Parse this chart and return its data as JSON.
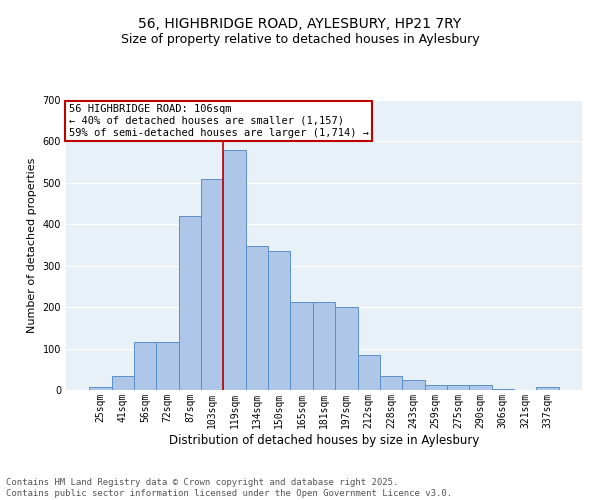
{
  "title": "56, HIGHBRIDGE ROAD, AYLESBURY, HP21 7RY",
  "subtitle": "Size of property relative to detached houses in Aylesbury",
  "xlabel": "Distribution of detached houses by size in Aylesbury",
  "ylabel": "Number of detached properties",
  "categories": [
    "25sqm",
    "41sqm",
    "56sqm",
    "72sqm",
    "87sqm",
    "103sqm",
    "119sqm",
    "134sqm",
    "150sqm",
    "165sqm",
    "181sqm",
    "197sqm",
    "212sqm",
    "228sqm",
    "243sqm",
    "259sqm",
    "275sqm",
    "290sqm",
    "306sqm",
    "321sqm",
    "337sqm"
  ],
  "values": [
    8,
    35,
    115,
    115,
    420,
    510,
    580,
    348,
    335,
    212,
    212,
    200,
    85,
    35,
    25,
    13,
    13,
    13,
    2,
    0,
    8
  ],
  "bar_color": "#aec6e8",
  "bar_edge_color": "#5b8fc9",
  "vline_x_index": 6,
  "vline_color": "#c00000",
  "ylim": [
    0,
    700
  ],
  "yticks": [
    0,
    100,
    200,
    300,
    400,
    500,
    600,
    700
  ],
  "annotation_title": "56 HIGHBRIDGE ROAD: 106sqm",
  "annotation_line1": "← 40% of detached houses are smaller (1,157)",
  "annotation_line2": "59% of semi-detached houses are larger (1,714) →",
  "annotation_box_color": "#c00000",
  "background_color": "#e8f0f8",
  "footer_line1": "Contains HM Land Registry data © Crown copyright and database right 2025.",
  "footer_line2": "Contains public sector information licensed under the Open Government Licence v3.0.",
  "title_fontsize": 10,
  "subtitle_fontsize": 9,
  "xlabel_fontsize": 8.5,
  "ylabel_fontsize": 8,
  "tick_fontsize": 7,
  "footer_fontsize": 6.5,
  "ann_fontsize": 7.5
}
